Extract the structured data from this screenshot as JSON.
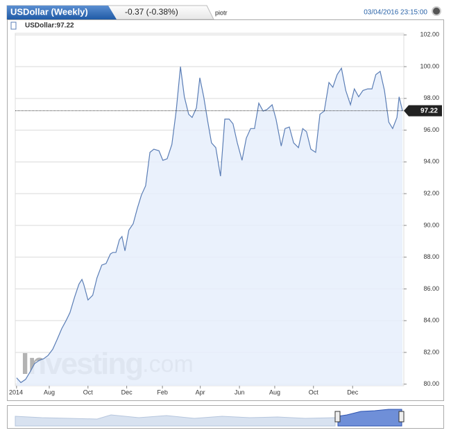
{
  "header": {
    "title": "USDollar (Weekly)",
    "change": "-0.37 (-0.38%)",
    "user": "piotr",
    "timestamp": "03/04/2016 23:15:00"
  },
  "chart_data": {
    "type": "area",
    "legend": "USDollar:97.22",
    "watermark_brand": "Investing",
    "watermark_suffix": ".com",
    "last_value": 97.22,
    "x": [
      0,
      1.0,
      2.1,
      3.2,
      4.2,
      5.3,
      6.3,
      7.3,
      8.4,
      9.4,
      10.5,
      11.5,
      12.4,
      13.5,
      14.5,
      15.2,
      15.6,
      16.6,
      17.7,
      18.7,
      19.8,
      20.8,
      21.8,
      22.4,
      23.1,
      23.9,
      24.5,
      25.2,
      26.1,
      27.1,
      28.1,
      29.0,
      30.0,
      31.0,
      31.9,
      33.1,
      34.0,
      35.0,
      36.1,
      37.1,
      38.1,
      39.0,
      40.0,
      40.8,
      41.8,
      42.6,
      43.5,
      44.4,
      45.3,
      46.3,
      47.4,
      48.4,
      49.4,
      50.3,
      51.3,
      52.4,
      53.4,
      54.4,
      55.3,
      56.3,
      57.3,
      58.2,
      59.4,
      60.3,
      61.5,
      62.4,
      63.4,
      64.4,
      65.5,
      66.5,
      67.4,
      68.4,
      69.5,
      70.5,
      71.5,
      72.6,
      73.5,
      74.5,
      75.5,
      76.5,
      77.6,
      78.5,
      79.5,
      80.5,
      81.6,
      82.6,
      83.5,
      84.5,
      85.5,
      86.5,
      87.4,
      88.4,
      88.9,
      89.7
    ],
    "series": [
      {
        "color": "#5a7db5",
        "fill": "#e6effc",
        "values": [
          80.4,
          80.1,
          80.3,
          80.8,
          81.3,
          81.5,
          81.6,
          81.8,
          82.2,
          82.8,
          83.5,
          84.0,
          84.5,
          85.5,
          86.3,
          86.6,
          86.3,
          85.3,
          85.6,
          86.7,
          87.5,
          87.6,
          88.2,
          88.3,
          88.3,
          89.1,
          89.3,
          88.4,
          89.7,
          90.1,
          91.1,
          91.9,
          92.5,
          94.6,
          94.8,
          94.7,
          94.1,
          94.2,
          95.1,
          97.2,
          100.0,
          98.1,
          97.0,
          96.8,
          97.4,
          99.3,
          98.1,
          96.6,
          95.2,
          94.9,
          93.1,
          96.7,
          96.7,
          96.4,
          95.2,
          94.1,
          95.5,
          96.1,
          96.1,
          97.7,
          97.2,
          97.3,
          97.6,
          96.7,
          95.0,
          96.1,
          96.2,
          95.2,
          94.9,
          96.1,
          95.9,
          94.8,
          94.6,
          97.0,
          97.2,
          99.0,
          98.7,
          99.5,
          99.9,
          98.5,
          97.6,
          98.6,
          98.1,
          98.5,
          98.6,
          98.6,
          99.5,
          99.7,
          98.5,
          96.5,
          96.1,
          96.8,
          98.1,
          97.22
        ]
      }
    ],
    "xlim": [
      -0.3,
      90.0
    ],
    "xticks": [
      {
        "value": 0,
        "label": "2014"
      },
      {
        "value": 7.6,
        "label": "Aug"
      },
      {
        "value": 16.6,
        "label": "Oct"
      },
      {
        "value": 25.6,
        "label": "Dec"
      },
      {
        "value": 33.9,
        "label": "Feb"
      },
      {
        "value": 42.7,
        "label": "Apr"
      },
      {
        "value": 51.8,
        "label": "Jun"
      },
      {
        "value": 60.0,
        "label": "Aug"
      },
      {
        "value": 69.0,
        "label": "Oct"
      },
      {
        "value": 78.1,
        "label": "Dec"
      }
    ],
    "ylim": [
      79.9,
      102.1
    ],
    "yticks": [
      {
        "value": 80,
        "label": "80.00"
      },
      {
        "value": 82,
        "label": "82.00"
      },
      {
        "value": 84,
        "label": "84.00"
      },
      {
        "value": 86,
        "label": "86.00"
      },
      {
        "value": 88,
        "label": "88.00"
      },
      {
        "value": 90,
        "label": "90.00"
      },
      {
        "value": 92,
        "label": "92.00"
      },
      {
        "value": 94,
        "label": "94.00"
      },
      {
        "value": 96,
        "label": "96.00"
      },
      {
        "value": 98,
        "label": "98.00"
      },
      {
        "value": 100,
        "label": "100.00"
      },
      {
        "value": 102,
        "label": "102.00"
      }
    ],
    "grid": true
  }
}
